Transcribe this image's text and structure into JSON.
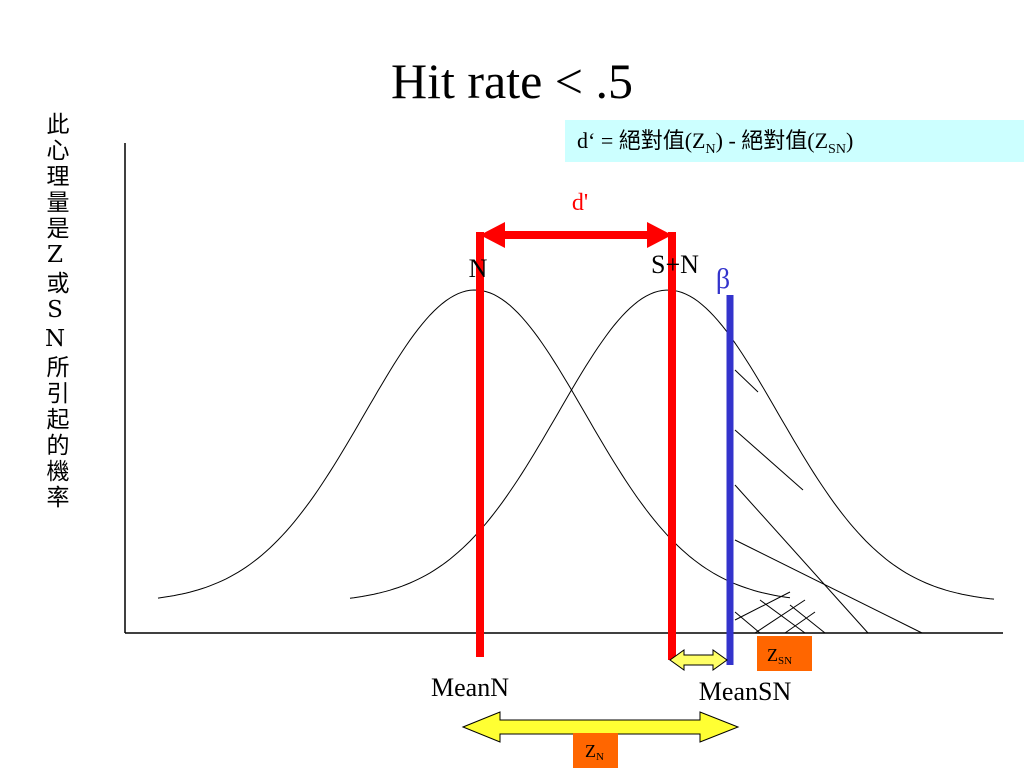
{
  "title": "Hit rate < .5",
  "formula": {
    "parts": [
      "d‘ = 絕對值(Z",
      "N",
      ") - 絕對值(Z",
      "SN",
      ")"
    ]
  },
  "y_axis_label": "此心理量是Z或SN所引起的機率",
  "labels": {
    "d_prime": "d'",
    "noise": "N",
    "signal_noise": "S+N",
    "beta": "β",
    "mean_n": "MeanN",
    "mean_sn": "MeanSN"
  },
  "z_sn": {
    "main": "Z",
    "sub": "SN"
  },
  "z_n": {
    "main": "Z",
    "sub": "N"
  }
}
